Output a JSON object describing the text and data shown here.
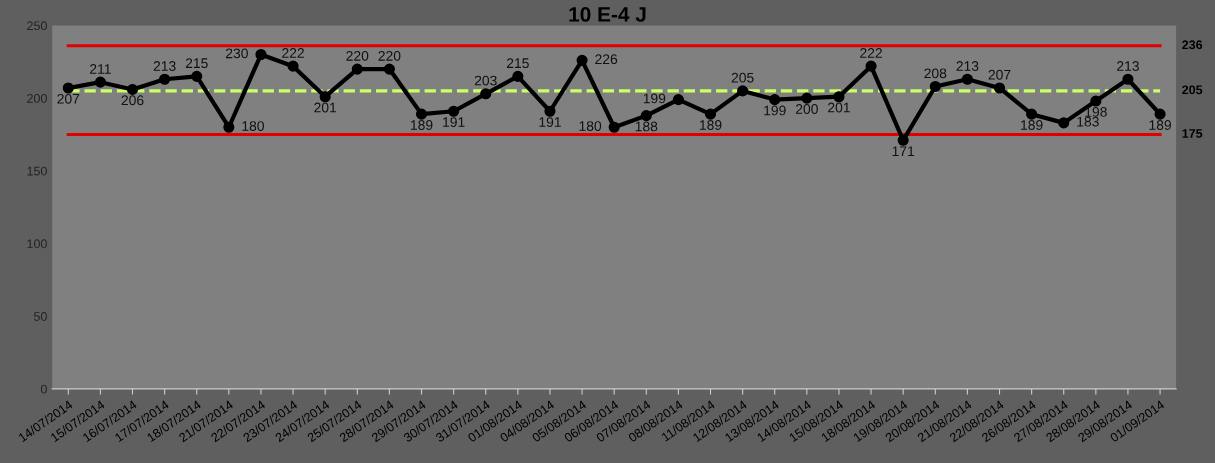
{
  "chart_data": {
    "type": "line",
    "title": "10 E-4 J",
    "categories": [
      "14/07/2014",
      "15/07/2014",
      "16/07/2014",
      "17/07/2014",
      "18/07/2014",
      "21/07/2014",
      "22/07/2014",
      "23/07/2014",
      "24/07/2014",
      "25/07/2014",
      "28/07/2014",
      "29/07/2014",
      "30/07/2014",
      "31/07/2014",
      "01/08/2014",
      "04/08/2014",
      "05/08/2014",
      "06/08/2014",
      "07/08/2014",
      "08/08/2014",
      "11/08/2014",
      "12/08/2014",
      "13/08/2014",
      "14/08/2014",
      "15/08/2014",
      "18/08/2014",
      "19/08/2014",
      "20/08/2014",
      "21/08/2014",
      "22/08/2014",
      "26/08/2014",
      "27/08/2014",
      "28/08/2014",
      "29/08/2014",
      "01/09/2014"
    ],
    "series": [
      {
        "color": "#000000",
        "values": [
          207,
          211,
          206,
          213,
          215,
          180,
          230,
          222,
          201,
          220,
          220,
          189,
          191,
          203,
          215,
          191,
          226,
          180,
          188,
          199,
          189,
          205,
          199,
          200,
          201,
          222,
          171,
          208,
          213,
          207,
          189,
          183,
          198,
          213,
          189
        ]
      }
    ],
    "ylim": [
      0,
      250
    ],
    "yticks": [
      0,
      50,
      100,
      150,
      200,
      250
    ],
    "ref_lines": [
      {
        "axis": "y",
        "value": 236,
        "label": "236",
        "color": "#e00000",
        "line_style": "solid"
      },
      {
        "axis": "y",
        "value": 205,
        "label": "205",
        "color": "#ccff66",
        "line_style": "dashed"
      },
      {
        "axis": "y",
        "value": 175,
        "label": "175",
        "color": "#e00000",
        "line_style": "solid"
      }
    ],
    "data_labels": true,
    "marker": "circle",
    "line_style": "solid",
    "grid": false,
    "legend": false
  }
}
